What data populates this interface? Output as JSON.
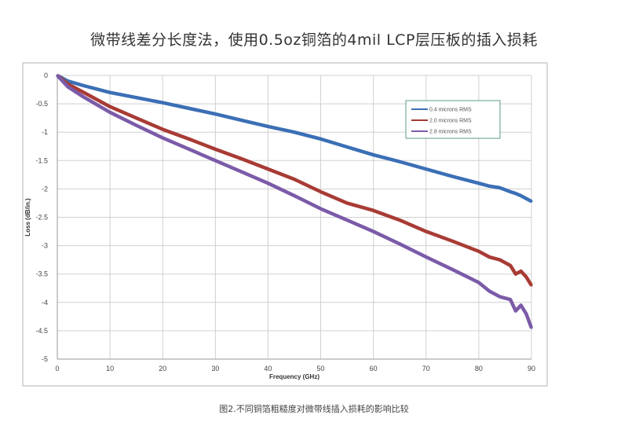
{
  "chart_data": {
    "type": "line",
    "title": "微带线差分长度法，使用0.5oz铜箔的4mil LCP层压板的插入损耗",
    "caption": "图2.不同铜箔粗糙度对微带线插入损耗的影响比较",
    "xlabel": "Frequency (GHz)",
    "ylabel": "Loss (dB/in.)",
    "xlim": [
      0,
      90
    ],
    "ylim": [
      -5,
      0
    ],
    "xticks": [
      "0",
      "10",
      "20",
      "30",
      "40",
      "50",
      "60",
      "70",
      "80",
      "90"
    ],
    "yticks": [
      "0",
      "-0.5",
      "-1",
      "-1.5",
      "-2",
      "-2.5",
      "-3",
      "-3.5",
      "-4",
      "-4.5",
      "-5"
    ],
    "grid": true,
    "legend_position": "top-right",
    "x": [
      0,
      2,
      5,
      10,
      15,
      20,
      25,
      30,
      35,
      40,
      45,
      50,
      55,
      60,
      65,
      70,
      75,
      80,
      82,
      84,
      86,
      87,
      88,
      89,
      90
    ],
    "series": [
      {
        "name": "0.4 microns RMS",
        "color": "#3b6fb6",
        "values": [
          0,
          -0.1,
          -0.18,
          -0.3,
          -0.39,
          -0.48,
          -0.58,
          -0.68,
          -0.79,
          -0.9,
          -1.0,
          -1.12,
          -1.26,
          -1.4,
          -1.52,
          -1.65,
          -1.78,
          -1.9,
          -1.95,
          -1.98,
          -2.05,
          -2.08,
          -2.12,
          -2.17,
          -2.22
        ]
      },
      {
        "name": "2.0 microns RMS",
        "color": "#a83b35",
        "values": [
          0,
          -0.15,
          -0.3,
          -0.55,
          -0.75,
          -0.95,
          -1.12,
          -1.3,
          -1.47,
          -1.65,
          -1.83,
          -2.05,
          -2.25,
          -2.38,
          -2.55,
          -2.75,
          -2.92,
          -3.1,
          -3.2,
          -3.25,
          -3.35,
          -3.5,
          -3.45,
          -3.55,
          -3.7
        ]
      },
      {
        "name": "2.8 microns RMS",
        "color": "#7b5ba8",
        "values": [
          0,
          -0.2,
          -0.38,
          -0.65,
          -0.88,
          -1.1,
          -1.3,
          -1.5,
          -1.7,
          -1.9,
          -2.12,
          -2.35,
          -2.55,
          -2.75,
          -2.97,
          -3.2,
          -3.42,
          -3.65,
          -3.8,
          -3.9,
          -3.95,
          -4.15,
          -4.05,
          -4.2,
          -4.45
        ]
      }
    ]
  }
}
